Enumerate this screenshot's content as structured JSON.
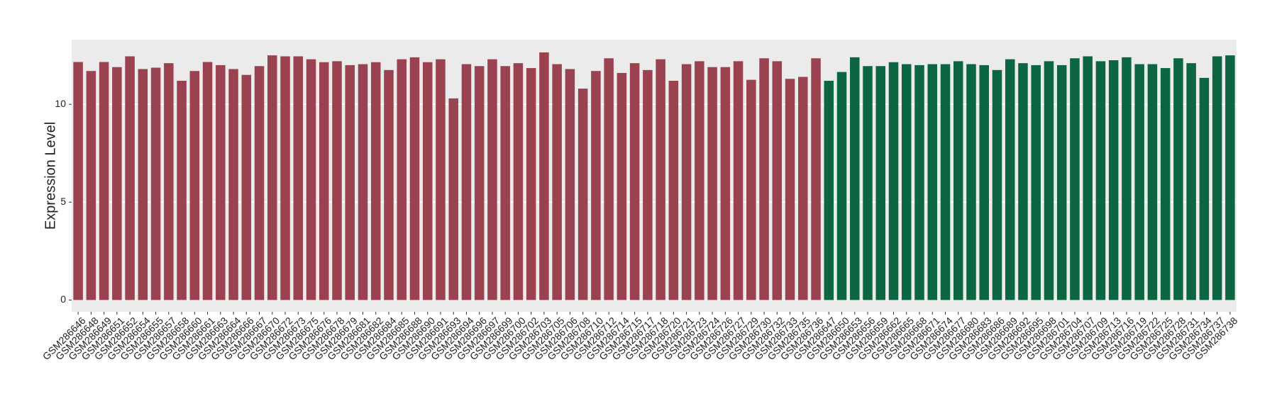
{
  "chart_data": {
    "type": "bar",
    "y_label": "Expression Level",
    "categories": [
      "GSM286646",
      "GSM286648",
      "GSM286649",
      "GSM286651",
      "GSM286652",
      "GSM286654",
      "GSM286655",
      "GSM286657",
      "GSM286658",
      "GSM286660",
      "GSM286661",
      "GSM286663",
      "GSM286664",
      "GSM286666",
      "GSM286667",
      "GSM286670",
      "GSM286672",
      "GSM286673",
      "GSM286675",
      "GSM286676",
      "GSM286678",
      "GSM286679",
      "GSM286681",
      "GSM286682",
      "GSM286684",
      "GSM286685",
      "GSM286688",
      "GSM286690",
      "GSM286691",
      "GSM286693",
      "GSM286694",
      "GSM286696",
      "GSM286697",
      "GSM286699",
      "GSM286700",
      "GSM286702",
      "GSM286703",
      "GSM286705",
      "GSM286706",
      "GSM286708",
      "GSM286710",
      "GSM286712",
      "GSM286714",
      "GSM286715",
      "GSM286717",
      "GSM286718",
      "GSM286720",
      "GSM286721",
      "GSM286723",
      "GSM286724",
      "GSM286726",
      "GSM286727",
      "GSM286729",
      "GSM286730",
      "GSM286732",
      "GSM286733",
      "GSM286735",
      "GSM286736",
      "GSM286647",
      "GSM286650",
      "GSM286653",
      "GSM286656",
      "GSM286659",
      "GSM286662",
      "GSM286665",
      "GSM286668",
      "GSM286671",
      "GSM286674",
      "GSM286677",
      "GSM286680",
      "GSM286683",
      "GSM286686",
      "GSM286689",
      "GSM286692",
      "GSM286695",
      "GSM286698",
      "GSM286701",
      "GSM286704",
      "GSM286707",
      "GSM286709",
      "GSM286713",
      "GSM286716",
      "GSM286719",
      "GSM286722",
      "GSM286725",
      "GSM286728",
      "GSM286731",
      "GSM286734",
      "GSM286737",
      "GSM286738"
    ],
    "series": [
      {
        "color": "#9b4250",
        "values": [
          12.16,
          11.7,
          12.16,
          11.9,
          12.45,
          11.8,
          11.87,
          12.1,
          11.2,
          11.7,
          12.16,
          12.0,
          11.8,
          11.5,
          11.95,
          12.5,
          12.45,
          12.45,
          12.3,
          12.15,
          12.2,
          12.0,
          12.05,
          12.15,
          11.75,
          12.3,
          12.4,
          12.15,
          12.3,
          10.3,
          12.05,
          11.95,
          12.3,
          11.95,
          12.1,
          11.85,
          12.65,
          12.05,
          11.8,
          10.8,
          11.7,
          12.35,
          11.6,
          12.1,
          11.75,
          12.3,
          11.2,
          12.05,
          12.2,
          11.9,
          11.9,
          12.2,
          11.25,
          12.35,
          12.2,
          11.3,
          11.4,
          12.35,
          null,
          null,
          null,
          null,
          null,
          null,
          null,
          null,
          null,
          null,
          null,
          null,
          null,
          null,
          null,
          null,
          null,
          null,
          null,
          null,
          null,
          null,
          null,
          null,
          null,
          null,
          null,
          null,
          null,
          null,
          null,
          null
        ]
      },
      {
        "color": "#0b6641",
        "values": [
          null,
          null,
          null,
          null,
          null,
          null,
          null,
          null,
          null,
          null,
          null,
          null,
          null,
          null,
          null,
          null,
          null,
          null,
          null,
          null,
          null,
          null,
          null,
          null,
          null,
          null,
          null,
          null,
          null,
          null,
          null,
          null,
          null,
          null,
          null,
          null,
          null,
          null,
          null,
          null,
          null,
          null,
          null,
          null,
          null,
          null,
          null,
          null,
          null,
          null,
          null,
          null,
          null,
          null,
          null,
          null,
          null,
          null,
          11.2,
          11.65,
          12.4,
          11.95,
          11.95,
          12.15,
          12.05,
          12.0,
          12.05,
          12.05,
          12.2,
          12.05,
          12.0,
          11.75,
          12.3,
          12.1,
          12.0,
          12.2,
          12.0,
          12.35,
          12.45,
          12.2,
          12.25,
          12.4,
          12.05,
          12.05,
          11.85,
          12.35,
          12.1,
          11.35,
          12.45,
          12.5
        ]
      }
    ],
    "ylim": [
      -0.6,
      13.3
    ],
    "yticks": [
      0,
      5,
      10
    ],
    "grid": true
  }
}
